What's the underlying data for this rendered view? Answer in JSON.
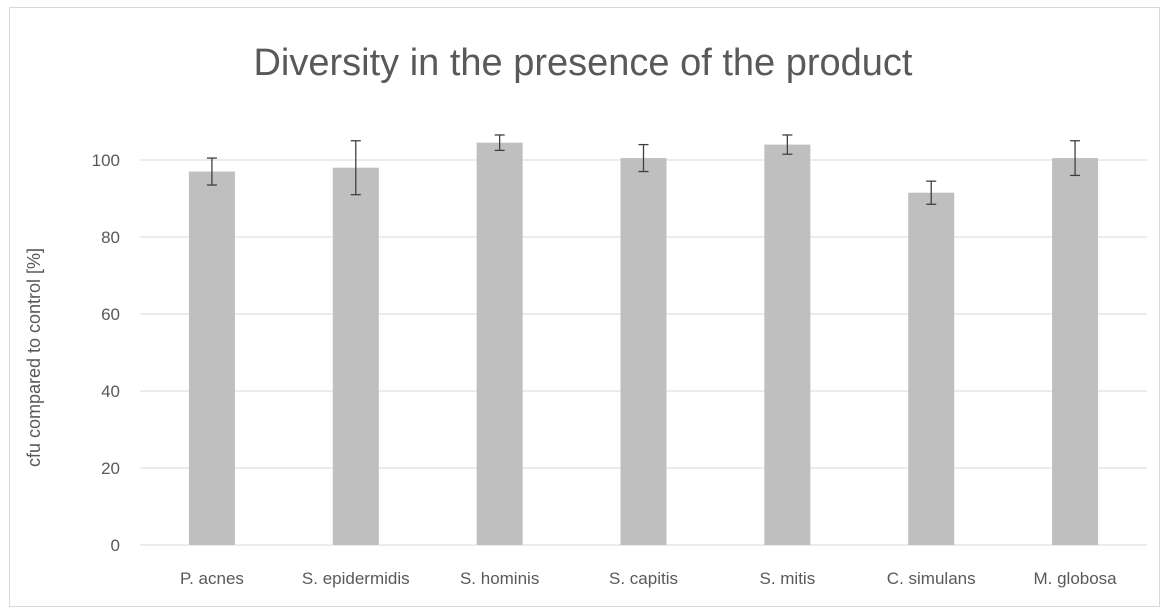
{
  "chart_data": {
    "type": "bar",
    "title": "Diversity in the presence of the product",
    "xlabel": "",
    "ylabel": "cfu compared to control [%]",
    "categories": [
      "P. acnes",
      "S. epidermidis",
      "S. hominis",
      "S. capitis",
      "S. mitis",
      "C. simulans",
      "M. globosa"
    ],
    "values": [
      97,
      98,
      104.5,
      100.5,
      104,
      91.5,
      100.5
    ],
    "errors": [
      3.5,
      7,
      2,
      3.5,
      2.5,
      3,
      4.5
    ],
    "yticks": [
      0,
      20,
      40,
      60,
      80,
      100
    ],
    "ylim": [
      0,
      100
    ],
    "grid": true,
    "bar_color": "#bfbfbf",
    "error_color": "#404040",
    "grid_color": "#d9d9d9"
  }
}
